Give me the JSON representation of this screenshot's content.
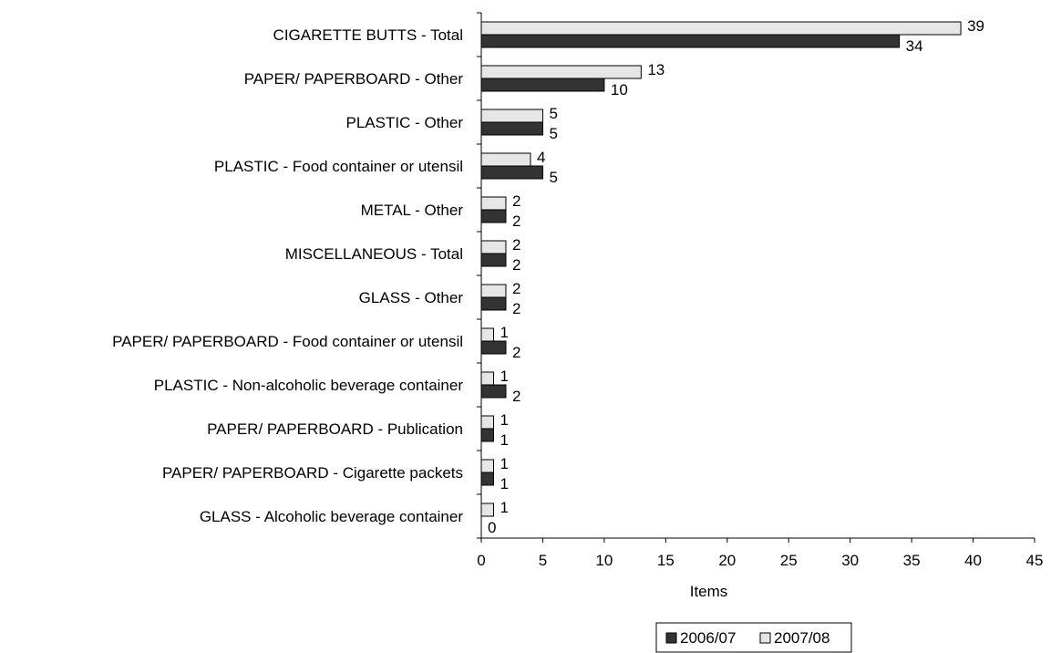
{
  "chart_data": {
    "type": "bar",
    "orientation": "horizontal",
    "categories": [
      "CIGARETTE BUTTS - Total",
      "PAPER/ PAPERBOARD - Other",
      "PLASTIC - Other",
      "PLASTIC - Food container or utensil",
      "METAL - Other",
      "MISCELLANEOUS - Total",
      "GLASS - Other",
      "PAPER/ PAPERBOARD - Food container or utensil",
      "PLASTIC - Non-alcoholic beverage container",
      "PAPER/ PAPERBOARD - Publication",
      "PAPER/ PAPERBOARD - Cigarette packets",
      "GLASS - Alcoholic beverage container"
    ],
    "series": [
      {
        "name": "2006/07",
        "color": "#333333",
        "values": [
          34,
          10,
          5,
          5,
          2,
          2,
          2,
          2,
          2,
          1,
          1,
          0
        ]
      },
      {
        "name": "2007/08",
        "color": "#e6e6e6",
        "values": [
          39,
          13,
          5,
          4,
          2,
          2,
          2,
          1,
          1,
          1,
          1,
          1
        ]
      }
    ],
    "xlabel": "Items",
    "ylabel": "",
    "xlim": [
      0,
      45
    ],
    "xticks": [
      0,
      5,
      10,
      15,
      20,
      25,
      30,
      35,
      40,
      45
    ],
    "grid": false,
    "legend_position": "bottom",
    "data_labels": true
  }
}
